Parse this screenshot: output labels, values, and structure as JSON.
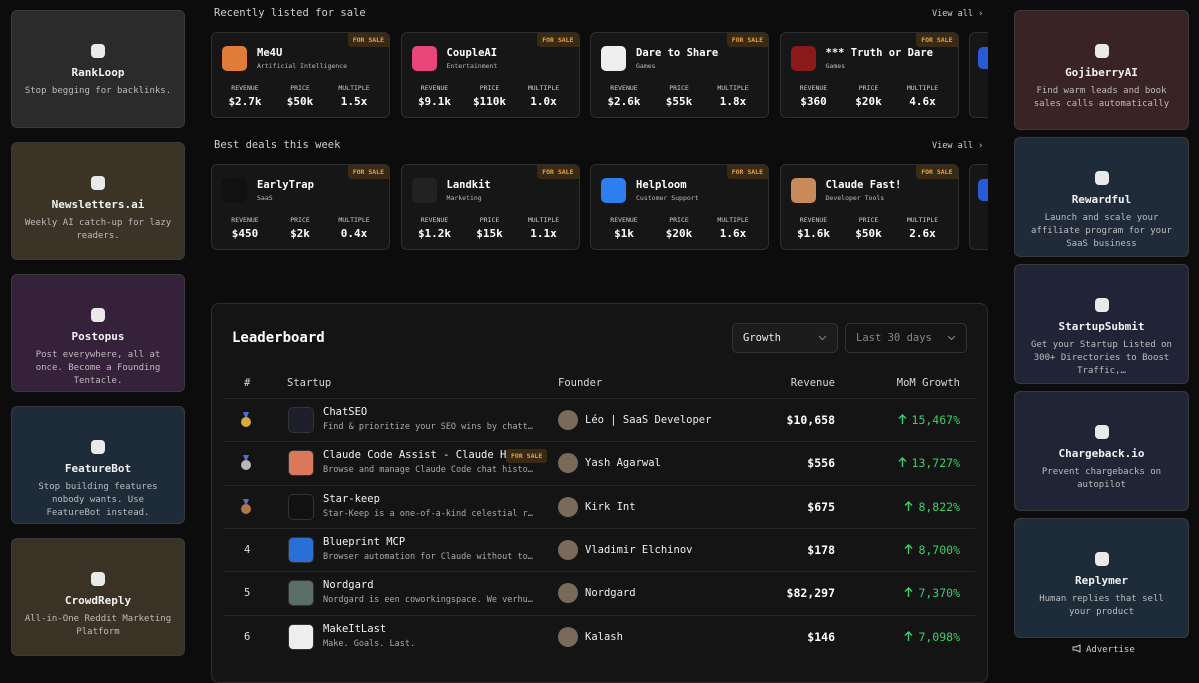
{
  "left_sponsors": [
    {
      "name": "RankLoop",
      "tagline": "Stop begging for backlinks.",
      "color": "#2b2b2b"
    },
    {
      "name": "Newsletters.ai",
      "tagline": "Weekly AI catch-up for lazy readers.",
      "color": "#3a3326"
    },
    {
      "name": "Postopus",
      "tagline": "Post everywhere, all at once. Become a Founding Tentacle.",
      "color": "#36213b"
    },
    {
      "name": "FeatureBot",
      "tagline": "Stop building features nobody wants. Use FeatureBot instead.",
      "color": "#1e2b39"
    },
    {
      "name": "CrowdReply",
      "tagline": "All-in-One Reddit Marketing Platform",
      "color": "#3a3325"
    }
  ],
  "right_sponsors": [
    {
      "name": "GojiberryAI",
      "tagline": "Find warm leads and book sales calls automatically",
      "color": "#3a2325"
    },
    {
      "name": "Rewardful",
      "tagline": "Launch and scale your affiliate program for your SaaS business",
      "color": "#1f2b39"
    },
    {
      "name": "StartupSubmit",
      "tagline": "Get your Startup Listed on 300+ Directories to Boost Traffic,…",
      "color": "#202436"
    },
    {
      "name": "Chargeback.io",
      "tagline": "Prevent chargebacks on autopilot",
      "color": "#202536"
    },
    {
      "name": "Replymer",
      "tagline": "Human replies that sell your product",
      "color": "#1e2b39"
    }
  ],
  "advertise": "Advertise",
  "badge": "FOR SALE",
  "stat_labels": [
    "REVENUE",
    "PRICE",
    "MULTIPLE"
  ],
  "sections": [
    {
      "title": "Recently listed for sale",
      "view_all": "View all",
      "listings": [
        {
          "name": "Me4U",
          "category": "Artificial Intelligence",
          "stats": [
            "$2.7k",
            "$50k",
            "1.5x"
          ],
          "color": "#e07b39"
        },
        {
          "name": "CoupleAI",
          "category": "Entertainment",
          "stats": [
            "$9.1k",
            "$110k",
            "1.0x"
          ],
          "color": "#e8457a"
        },
        {
          "name": "Dare to Share",
          "category": "Games",
          "stats": [
            "$2.6k",
            "$55k",
            "1.8x"
          ],
          "color": "#eeeeee"
        },
        {
          "name": "*** Truth or Dare",
          "category": "Games",
          "stats": [
            "$360",
            "$20k",
            "4.6x"
          ],
          "color": "#8a1a1a"
        }
      ]
    },
    {
      "title": "Best deals this week",
      "view_all": "View all",
      "listings": [
        {
          "name": "EarlyTrap",
          "category": "SaaS",
          "stats": [
            "$450",
            "$2k",
            "0.4x"
          ],
          "color": "#111111"
        },
        {
          "name": "Landkit",
          "category": "Marketing",
          "stats": [
            "$1.2k",
            "$15k",
            "1.1x"
          ],
          "color": "#222222"
        },
        {
          "name": "Helploom",
          "category": "Customer Support",
          "stats": [
            "$1k",
            "$20k",
            "1.6x"
          ],
          "color": "#2d7ff0"
        },
        {
          "name": "Claude Fast!",
          "category": "Developer Tools",
          "stats": [
            "$1.6k",
            "$50k",
            "2.6x"
          ],
          "color": "#c98a5a"
        }
      ]
    }
  ],
  "leaderboard": {
    "title": "Leaderboard",
    "filters": [
      "Growth",
      "Last 30 days"
    ],
    "columns": [
      "#",
      "Startup",
      "Founder",
      "Revenue",
      "MoM Growth"
    ],
    "rows": [
      {
        "medal": "#d8a93a",
        "name": "ChatSEO",
        "description": "Find & prioritize your SEO wins by chatt…",
        "founder": "Léo | SaaS Developer",
        "revenue": "$10,658",
        "growth": "15,467%",
        "logo": "#1d1d2b"
      },
      {
        "medal": "#b8b8b8",
        "name": "Claude Code Assist - Claude Hi…",
        "description": "Browse and manage Claude Code chat histo…",
        "for_sale": true,
        "founder": "Yash Agarwal",
        "revenue": "$556",
        "growth": "13,727%",
        "logo": "#d9785a"
      },
      {
        "medal": "#b0764a",
        "name": "Star-keep",
        "description": "Star-Keep is a one-of-a-kind celestial r…",
        "founder": "Kirk Int",
        "revenue": "$675",
        "growth": "8,822%",
        "logo": "#111111"
      },
      {
        "rank": "4",
        "name": "Blueprint MCP",
        "description": "Browser automation for Claude without to…",
        "founder": "Vladimir Elchinov",
        "revenue": "$178",
        "growth": "8,700%",
        "logo": "#2a6fd6"
      },
      {
        "rank": "5",
        "name": "Nordgard",
        "description": "Nordgard is een coworkingspace. We verhu…",
        "founder": "Nordgard",
        "revenue": "$82,297",
        "growth": "7,370%",
        "logo": "#5a6e68"
      },
      {
        "rank": "6",
        "name": "MakeItLast",
        "description": "Make. Goals. Last.",
        "founder": "Kalash",
        "revenue": "$146",
        "growth": "7,098%",
        "logo": "#eeeeee"
      }
    ]
  }
}
